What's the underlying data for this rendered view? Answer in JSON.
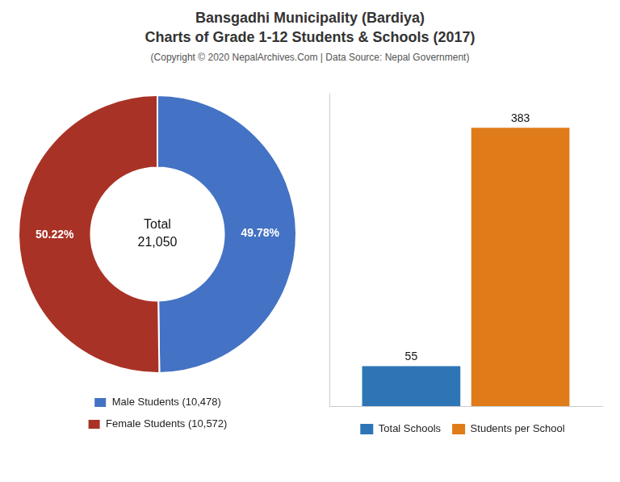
{
  "title": [
    "Bansgadhi Municipality (Bardiya)",
    "Charts of Grade 1-12 Students & Schools (2017)"
  ],
  "subtitle": "(Copyright © 2020 NepalArchives.Com | Data Source: Nepal Government)",
  "chart_data": [
    {
      "type": "doughnut",
      "categories": [
        "Male Students (10,478)",
        "Female Students (10,572)"
      ],
      "values": [
        49.78,
        50.22
      ],
      "value_labels": [
        "49.78%",
        "50.22%"
      ],
      "data_labels": true,
      "colors": [
        "#4472c4",
        "#a93226"
      ],
      "annotations": [
        "Total",
        "21,050"
      ],
      "legend": "bottom"
    },
    {
      "type": "bar",
      "categories": [
        null
      ],
      "series": [
        {
          "name": "Total Schools",
          "color": "#2e75b6",
          "values": [
            55
          ]
        },
        {
          "name": "Students per School",
          "color": "#e07b1a",
          "values": [
            383
          ]
        }
      ],
      "ylim": [
        0,
        430
      ],
      "data_labels": true,
      "tick_labels": false,
      "grid": false,
      "legend": "bottom"
    }
  ]
}
